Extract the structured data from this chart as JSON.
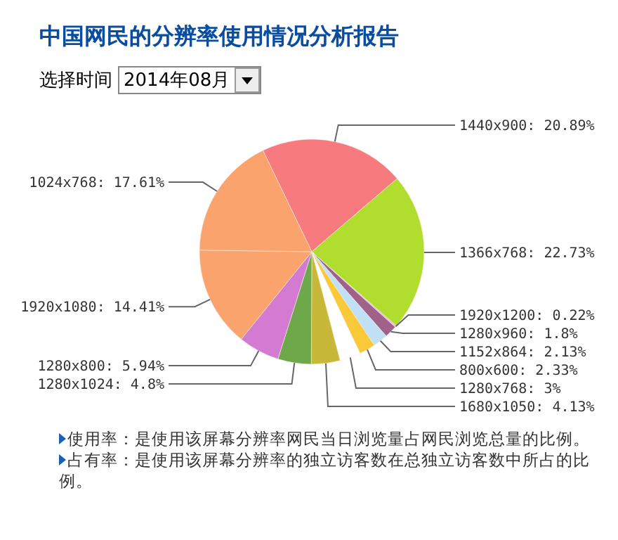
{
  "chart_data": {
    "type": "pie",
    "title": "中国网民的分辨率使用情况分析报告",
    "categories": [
      "1440x900",
      "1366x768",
      "1920x1200",
      "1280x960",
      "1152x864",
      "800x600",
      "1280x768",
      "1680x1050",
      "1280x1024",
      "1280x800",
      "1920x1080",
      "1024x768"
    ],
    "values": [
      20.89,
      22.73,
      0.22,
      1.8,
      2.13,
      2.33,
      3,
      4.13,
      4.8,
      5.94,
      14.41,
      17.61
    ],
    "value_labels": [
      "20.89%",
      "22.73%",
      "0.22%",
      "1.8%",
      "2.13%",
      "2.33%",
      "3%",
      "4.13%",
      "4.8%",
      "5.94%",
      "14.41%",
      "17.61%"
    ],
    "colors": [
      "#f77b7e",
      "#b0dd2e",
      "#e9b9d0",
      "#a0628a",
      "#bfe0f5",
      "#f9c93a",
      "#ffffff",
      "#c8b83a",
      "#6fa84a",
      "#d47ad0",
      "#fba36c",
      "#fba36c"
    ],
    "annotations": [
      "选择时间",
      "2014年08月",
      "使用率：是使用该屏幕分辨率网民当日浏览量占网民浏览总量的比例。",
      "占有率：是使用该屏幕分辨率的独立访客数在总独立访客数中所占的比例。"
    ]
  }
}
